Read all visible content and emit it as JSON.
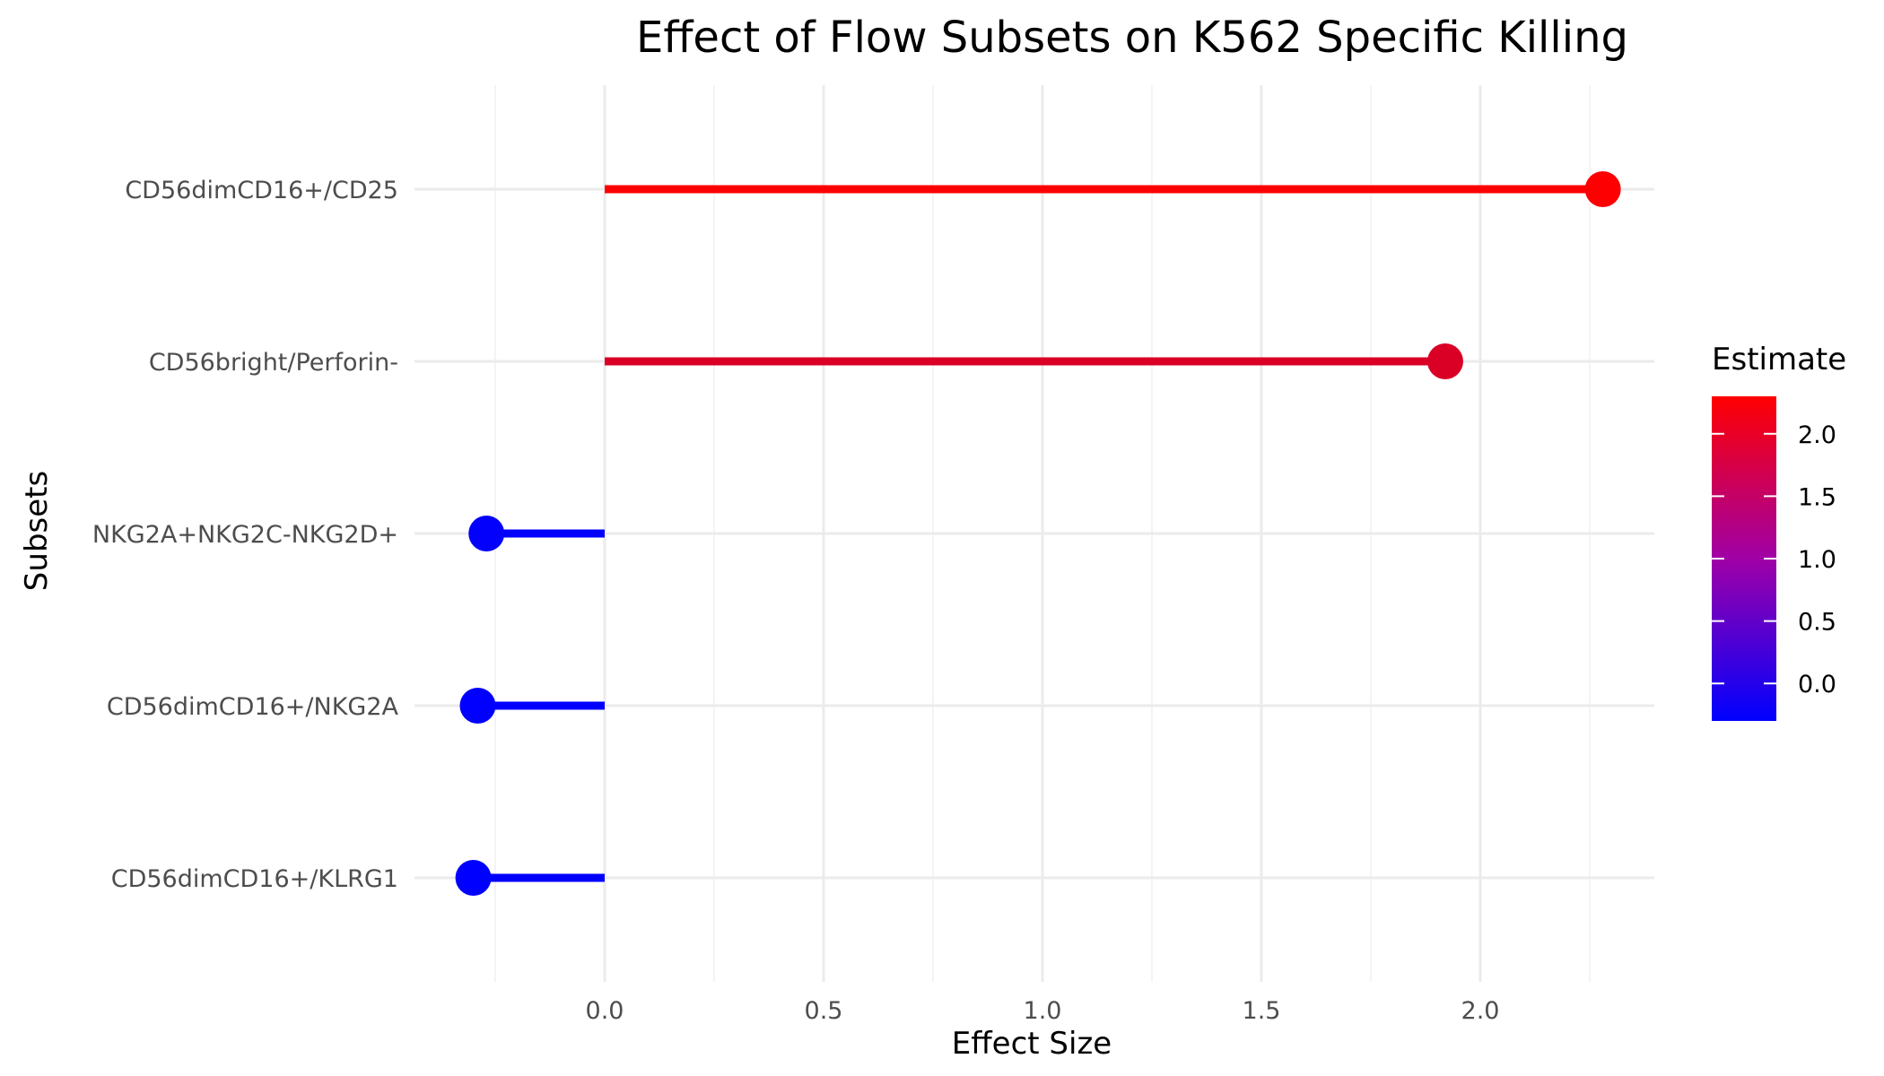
{
  "chart_data": {
    "type": "lollipop",
    "title": "Effect of Flow Subsets on K562 Specific Killing",
    "xlabel": "Effect Size",
    "ylabel": "Subsets",
    "xlim": [
      -0.3,
      2.3
    ],
    "x_ticks": [
      0.0,
      0.5,
      1.0,
      1.5,
      2.0
    ],
    "x_tick_labels": [
      "0.0",
      "0.5",
      "1.0",
      "1.5",
      "2.0"
    ],
    "grid": true,
    "categories": [
      "CD56dimCD16+/CD25",
      "CD56bright/Perforin-",
      "NKG2A+NKG2C-NKG2D+",
      "CD56dimCD16+/NKG2A",
      "CD56dimCD16+/KLRG1"
    ],
    "values": [
      2.28,
      1.92,
      -0.27,
      -0.29,
      -0.3
    ],
    "legend": {
      "title": "Estimate",
      "placement": "right",
      "range": [
        -0.3,
        2.3
      ],
      "breaks": [
        2.0,
        1.5,
        1.0,
        0.5,
        0.0
      ],
      "break_labels": [
        "2.0",
        "1.5",
        "1.0",
        "0.5",
        "0.0"
      ],
      "low_color": "#0000ff",
      "high_color": "#ff0000"
    }
  }
}
